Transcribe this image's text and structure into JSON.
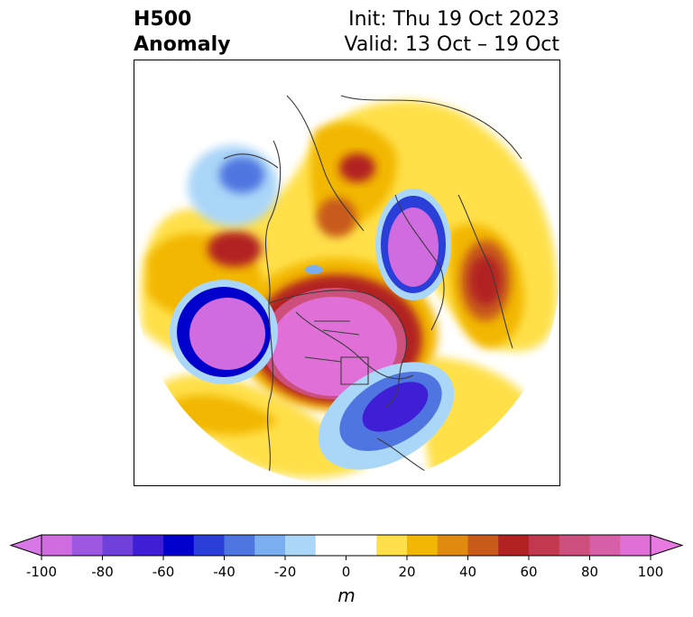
{
  "header": {
    "title_line1": "H500",
    "title_line2": "Anomaly",
    "init_label": "Init: Thu 19 Oct 2023",
    "valid_label": "Valid: 13 Oct – 19 Oct"
  },
  "map": {
    "projection": "north-polar-stereographic",
    "variable": "500 hPa geopotential height anomaly"
  },
  "colorbar": {
    "unit": "m",
    "extend": "both",
    "ticks": [
      "-100",
      "-80",
      "-60",
      "-40",
      "-20",
      "0",
      "20",
      "40",
      "60",
      "80",
      "100"
    ],
    "levels": [
      -100,
      -90,
      -80,
      -70,
      -60,
      -50,
      -40,
      -30,
      -20,
      -10,
      10,
      20,
      30,
      40,
      50,
      60,
      70,
      80,
      90,
      100
    ],
    "colors": [
      "#d06be0",
      "#9e57e0",
      "#7040da",
      "#3f1fd6",
      "#0000cc",
      "#2a3ed8",
      "#4f76e0",
      "#7aaef0",
      "#aad6f8",
      "#ffffff",
      "#ffe04a",
      "#f2b705",
      "#e08a10",
      "#c85a1a",
      "#b22222",
      "#c2384f",
      "#cc4f7c",
      "#d65fa8",
      "#e070d8"
    ],
    "under_color": "#d877e6",
    "over_color": "#e67ae0"
  }
}
